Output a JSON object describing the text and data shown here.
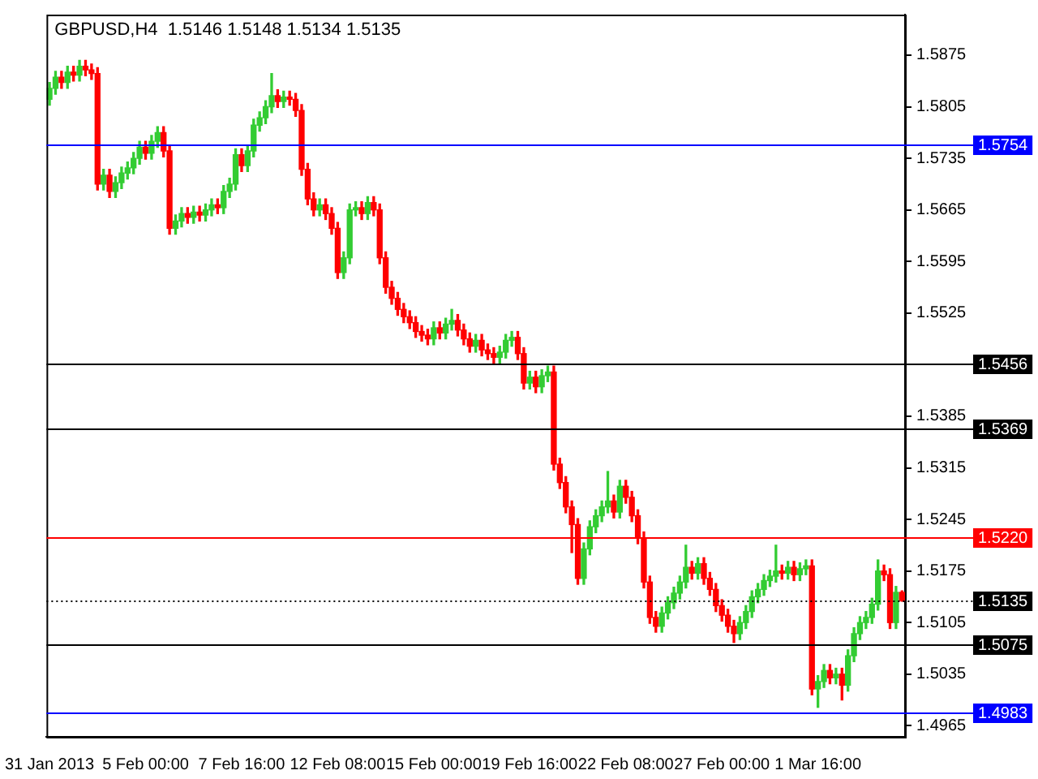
{
  "chart_data": {
    "type": "candlestick",
    "title": "GBPUSD,H4  1.5146 1.5148 1.5134 1.5135",
    "categories": [
      "31 Jan 2013",
      null,
      null,
      null,
      null,
      null,
      null,
      null,
      null,
      null,
      null,
      null,
      null,
      null,
      null,
      null,
      "5 Feb 00:00",
      null,
      null,
      null,
      null,
      null,
      null,
      null,
      null,
      null,
      null,
      null,
      null,
      null,
      null,
      null,
      "7 Feb 16:00",
      null,
      null,
      null,
      null,
      null,
      null,
      null,
      null,
      null,
      null,
      null,
      null,
      null,
      null,
      null,
      "12 Feb 08:00",
      null,
      null,
      null,
      null,
      null,
      null,
      null,
      null,
      null,
      null,
      null,
      null,
      null,
      null,
      null,
      "15 Feb 00:00",
      null,
      null,
      null,
      null,
      null,
      null,
      null,
      null,
      null,
      null,
      null,
      null,
      null,
      null,
      null,
      "19 Feb 16:00",
      null,
      null,
      null,
      null,
      null,
      null,
      null,
      null,
      null,
      null,
      null,
      null,
      null,
      null,
      null,
      "22 Feb 08:00",
      null,
      null,
      null,
      null,
      null,
      null,
      null,
      null,
      null,
      null,
      null,
      null,
      null,
      null,
      null,
      "27 Feb 00:00",
      null,
      null,
      null,
      null,
      null,
      null,
      null,
      null,
      null,
      null,
      null,
      null,
      null,
      null,
      null,
      "1 Mar 16:00",
      null,
      null,
      null,
      null,
      null,
      null,
      null,
      null,
      null,
      null,
      null,
      null,
      null,
      null
    ],
    "ohlc": [
      [
        1.5815,
        1.5838,
        1.5807,
        1.583
      ],
      [
        1.583,
        1.5853,
        1.5822,
        1.5845
      ],
      [
        1.5845,
        1.5853,
        1.583,
        1.5838
      ],
      [
        1.5838,
        1.586,
        1.583,
        1.5852
      ],
      [
        1.5852,
        1.586,
        1.584,
        1.5848
      ],
      [
        1.5848,
        1.5868,
        1.584,
        1.586
      ],
      [
        1.586,
        1.5868,
        1.5847,
        1.5855
      ],
      [
        1.5855,
        1.5863,
        1.5842,
        1.585
      ],
      [
        1.585,
        1.5858,
        1.5692,
        1.57
      ],
      [
        1.57,
        1.572,
        1.5692,
        1.5712
      ],
      [
        1.5712,
        1.572,
        1.5682,
        1.569
      ],
      [
        1.569,
        1.571,
        1.5682,
        1.5702
      ],
      [
        1.5702,
        1.5723,
        1.5694,
        1.5715
      ],
      [
        1.5715,
        1.573,
        1.5707,
        1.5722
      ],
      [
        1.5722,
        1.5743,
        1.5714,
        1.5735
      ],
      [
        1.5735,
        1.5758,
        1.5727,
        1.575
      ],
      [
        1.575,
        1.5758,
        1.5734,
        1.5742
      ],
      [
        1.5742,
        1.5766,
        1.5734,
        1.5758
      ],
      [
        1.5758,
        1.5778,
        1.575,
        1.577
      ],
      [
        1.577,
        1.5778,
        1.5737,
        1.5745
      ],
      [
        1.5745,
        1.5753,
        1.5632,
        1.564
      ],
      [
        1.564,
        1.5658,
        1.5632,
        1.565
      ],
      [
        1.565,
        1.5668,
        1.5642,
        1.566
      ],
      [
        1.566,
        1.5668,
        1.5647,
        1.5655
      ],
      [
        1.5655,
        1.567,
        1.5647,
        1.5662
      ],
      [
        1.5662,
        1.567,
        1.565,
        1.5658
      ],
      [
        1.5658,
        1.5673,
        1.565,
        1.5665
      ],
      [
        1.5665,
        1.568,
        1.5657,
        1.5672
      ],
      [
        1.5672,
        1.568,
        1.566,
        1.5668
      ],
      [
        1.5668,
        1.5698,
        1.566,
        1.569
      ],
      [
        1.569,
        1.5708,
        1.5682,
        1.57
      ],
      [
        1.57,
        1.5748,
        1.5692,
        1.574
      ],
      [
        1.574,
        1.5748,
        1.5717,
        1.5725
      ],
      [
        1.5725,
        1.5753,
        1.5717,
        1.5745
      ],
      [
        1.5745,
        1.5788,
        1.5737,
        1.578
      ],
      [
        1.578,
        1.5798,
        1.5772,
        1.579
      ],
      [
        1.579,
        1.5813,
        1.5782,
        1.5805
      ],
      [
        1.5805,
        1.585,
        1.5797,
        1.582
      ],
      [
        1.582,
        1.5828,
        1.5804,
        1.5812
      ],
      [
        1.5812,
        1.5826,
        1.5804,
        1.5818
      ],
      [
        1.5818,
        1.5826,
        1.5807,
        1.5815
      ],
      [
        1.5815,
        1.5823,
        1.5792,
        1.58
      ],
      [
        1.58,
        1.5808,
        1.5712,
        1.572
      ],
      [
        1.572,
        1.5728,
        1.5672,
        1.568
      ],
      [
        1.568,
        1.5688,
        1.5657,
        1.5665
      ],
      [
        1.5665,
        1.568,
        1.5657,
        1.5672
      ],
      [
        1.5672,
        1.568,
        1.5652,
        1.566
      ],
      [
        1.566,
        1.5668,
        1.5632,
        1.564
      ],
      [
        1.564,
        1.5648,
        1.5572,
        1.558
      ],
      [
        1.558,
        1.5608,
        1.5572,
        1.56
      ],
      [
        1.56,
        1.5673,
        1.5592,
        1.5665
      ],
      [
        1.5665,
        1.5676,
        1.5657,
        1.5668
      ],
      [
        1.5668,
        1.5676,
        1.5652,
        1.566
      ],
      [
        1.566,
        1.5683,
        1.5652,
        1.5675
      ],
      [
        1.5675,
        1.5683,
        1.5657,
        1.5665
      ],
      [
        1.5665,
        1.5673,
        1.5592,
        1.56
      ],
      [
        1.56,
        1.5608,
        1.5552,
        1.556
      ],
      [
        1.556,
        1.5568,
        1.5537,
        1.5545
      ],
      [
        1.5545,
        1.5553,
        1.5522,
        1.553
      ],
      [
        1.553,
        1.5538,
        1.5512,
        1.552
      ],
      [
        1.552,
        1.5528,
        1.5504,
        1.5512
      ],
      [
        1.5512,
        1.552,
        1.5492,
        1.55
      ],
      [
        1.55,
        1.5508,
        1.5487,
        1.5495
      ],
      [
        1.5495,
        1.5503,
        1.5482,
        1.549
      ],
      [
        1.549,
        1.5513,
        1.5482,
        1.5505
      ],
      [
        1.5505,
        1.5513,
        1.549,
        1.5498
      ],
      [
        1.5498,
        1.5518,
        1.549,
        1.551
      ],
      [
        1.551,
        1.553,
        1.5502,
        1.5515
      ],
      [
        1.5515,
        1.5523,
        1.5494,
        1.5502
      ],
      [
        1.5502,
        1.551,
        1.5482,
        1.549
      ],
      [
        1.549,
        1.5498,
        1.5472,
        1.548
      ],
      [
        1.548,
        1.5496,
        1.5472,
        1.5488
      ],
      [
        1.5488,
        1.5496,
        1.5467,
        1.5475
      ],
      [
        1.5475,
        1.5483,
        1.5462,
        1.547
      ],
      [
        1.547,
        1.5478,
        1.5457,
        1.5465
      ],
      [
        1.5465,
        1.548,
        1.5457,
        1.5472
      ],
      [
        1.5472,
        1.5496,
        1.5464,
        1.5488
      ],
      [
        1.5488,
        1.55,
        1.548,
        1.5492
      ],
      [
        1.5492,
        1.55,
        1.5462,
        1.547
      ],
      [
        1.547,
        1.5478,
        1.5422,
        1.543
      ],
      [
        1.543,
        1.5446,
        1.5422,
        1.5438
      ],
      [
        1.5438,
        1.5446,
        1.5417,
        1.5425
      ],
      [
        1.5425,
        1.5448,
        1.5417,
        1.544
      ],
      [
        1.544,
        1.5453,
        1.5432,
        1.5445
      ],
      [
        1.5445,
        1.5453,
        1.5312,
        1.532
      ],
      [
        1.532,
        1.5328,
        1.5287,
        1.5295
      ],
      [
        1.5295,
        1.5303,
        1.5254,
        1.5262
      ],
      [
        1.5262,
        1.527,
        1.52,
        1.5238
      ],
      [
        1.5238,
        1.5246,
        1.5157,
        1.5165
      ],
      [
        1.5165,
        1.5213,
        1.5157,
        1.5205
      ],
      [
        1.5205,
        1.5243,
        1.5197,
        1.5235
      ],
      [
        1.5235,
        1.5258,
        1.5227,
        1.525
      ],
      [
        1.525,
        1.527,
        1.5242,
        1.5262
      ],
      [
        1.5262,
        1.531,
        1.5254,
        1.527
      ],
      [
        1.527,
        1.5278,
        1.5247,
        1.5255
      ],
      [
        1.5255,
        1.5298,
        1.5247,
        1.529
      ],
      [
        1.529,
        1.5298,
        1.5267,
        1.5275
      ],
      [
        1.5275,
        1.5283,
        1.5242,
        1.525
      ],
      [
        1.525,
        1.5258,
        1.5212,
        1.522
      ],
      [
        1.522,
        1.5228,
        1.5152,
        1.516
      ],
      [
        1.516,
        1.5168,
        1.5104,
        1.5112
      ],
      [
        1.5112,
        1.512,
        1.5092,
        1.51
      ],
      [
        1.51,
        1.5126,
        1.5092,
        1.5118
      ],
      [
        1.5118,
        1.514,
        1.511,
        1.5132
      ],
      [
        1.5132,
        1.5153,
        1.5124,
        1.5145
      ],
      [
        1.5145,
        1.5168,
        1.5137,
        1.516
      ],
      [
        1.516,
        1.521,
        1.5152,
        1.518
      ],
      [
        1.518,
        1.5188,
        1.5164,
        1.5172
      ],
      [
        1.5172,
        1.5193,
        1.5164,
        1.5185
      ],
      [
        1.5185,
        1.5193,
        1.5157,
        1.5165
      ],
      [
        1.5165,
        1.5173,
        1.5142,
        1.515
      ],
      [
        1.515,
        1.5158,
        1.512,
        1.5128
      ],
      [
        1.5128,
        1.5136,
        1.5107,
        1.5115
      ],
      [
        1.5115,
        1.5123,
        1.5092,
        1.51
      ],
      [
        1.51,
        1.5108,
        1.5078,
        1.509
      ],
      [
        1.509,
        1.5113,
        1.5082,
        1.5105
      ],
      [
        1.5105,
        1.5128,
        1.5097,
        1.512
      ],
      [
        1.512,
        1.5148,
        1.5112,
        1.514
      ],
      [
        1.514,
        1.5158,
        1.5132,
        1.515
      ],
      [
        1.515,
        1.517,
        1.5142,
        1.5162
      ],
      [
        1.5162,
        1.5176,
        1.5154,
        1.5168
      ],
      [
        1.5168,
        1.521,
        1.516,
        1.5175
      ],
      [
        1.5175,
        1.5183,
        1.5164,
        1.5172
      ],
      [
        1.5172,
        1.5188,
        1.5164,
        1.518
      ],
      [
        1.518,
        1.5188,
        1.5162,
        1.517
      ],
      [
        1.517,
        1.5186,
        1.5162,
        1.5178
      ],
      [
        1.5178,
        1.519,
        1.517,
        1.5182
      ],
      [
        1.5182,
        1.519,
        1.5007,
        1.5015
      ],
      [
        1.5015,
        1.5033,
        1.499,
        1.5025
      ],
      [
        1.5025,
        1.5048,
        1.5017,
        1.504
      ],
      [
        1.504,
        1.5048,
        1.5022,
        1.503
      ],
      [
        1.503,
        1.5043,
        1.5022,
        1.5035
      ],
      [
        1.5035,
        1.5043,
        1.5,
        1.502
      ],
      [
        1.502,
        1.5068,
        1.5012,
        1.506
      ],
      [
        1.506,
        1.5098,
        1.5052,
        1.509
      ],
      [
        1.509,
        1.5113,
        1.5082,
        1.5105
      ],
      [
        1.5105,
        1.512,
        1.5097,
        1.5112
      ],
      [
        1.5112,
        1.5138,
        1.5104,
        1.513
      ],
      [
        1.513,
        1.519,
        1.5122,
        1.5175
      ],
      [
        1.5175,
        1.5183,
        1.5162,
        1.517
      ],
      [
        1.517,
        1.5178,
        1.5097,
        1.5105
      ],
      [
        1.5105,
        1.5154,
        1.5097,
        1.5146
      ],
      [
        1.5146,
        1.5148,
        1.5134,
        1.5135
      ]
    ],
    "colors": [
      "#33cc33",
      "#33cc33",
      "#ff0000",
      "#33cc33",
      "#ff0000",
      "#33cc33",
      "#ff0000",
      "#ff0000",
      "#ff0000",
      "#33cc33",
      "#ff0000",
      "#33cc33",
      "#33cc33",
      "#33cc33",
      "#33cc33",
      "#33cc33",
      "#ff0000",
      "#33cc33",
      "#33cc33",
      "#ff0000",
      "#ff0000",
      "#33cc33",
      "#33cc33",
      "#ff0000",
      "#33cc33",
      "#ff0000",
      "#33cc33",
      "#33cc33",
      "#ff0000",
      "#33cc33",
      "#33cc33",
      "#33cc33",
      "#ff0000",
      "#33cc33",
      "#33cc33",
      "#33cc33",
      "#33cc33",
      "#33cc33",
      "#ff0000",
      "#33cc33",
      "#ff0000",
      "#ff0000",
      "#ff0000",
      "#ff0000",
      "#ff0000",
      "#33cc33",
      "#ff0000",
      "#ff0000",
      "#ff0000",
      "#33cc33",
      "#33cc33",
      "#33cc33",
      "#ff0000",
      "#33cc33",
      "#ff0000",
      "#ff0000",
      "#ff0000",
      "#ff0000",
      "#ff0000",
      "#ff0000",
      "#ff0000",
      "#ff0000",
      "#ff0000",
      "#ff0000",
      "#33cc33",
      "#ff0000",
      "#33cc33",
      "#33cc33",
      "#ff0000",
      "#ff0000",
      "#ff0000",
      "#33cc33",
      "#ff0000",
      "#ff0000",
      "#ff0000",
      "#33cc33",
      "#33cc33",
      "#33cc33",
      "#ff0000",
      "#ff0000",
      "#33cc33",
      "#ff0000",
      "#33cc33",
      "#33cc33",
      "#ff0000",
      "#ff0000",
      "#ff0000",
      "#ff0000",
      "#ff0000",
      "#33cc33",
      "#33cc33",
      "#33cc33",
      "#33cc33",
      "#33cc33",
      "#ff0000",
      "#33cc33",
      "#ff0000",
      "#ff0000",
      "#ff0000",
      "#ff0000",
      "#ff0000",
      "#ff0000",
      "#33cc33",
      "#33cc33",
      "#33cc33",
      "#33cc33",
      "#33cc33",
      "#ff0000",
      "#33cc33",
      "#ff0000",
      "#ff0000",
      "#ff0000",
      "#ff0000",
      "#ff0000",
      "#ff0000",
      "#33cc33",
      "#33cc33",
      "#33cc33",
      "#33cc33",
      "#33cc33",
      "#33cc33",
      "#33cc33",
      "#ff0000",
      "#33cc33",
      "#ff0000",
      "#33cc33",
      "#33cc33",
      "#ff0000",
      "#33cc33",
      "#33cc33",
      "#ff0000",
      "#33cc33",
      "#ff0000",
      "#33cc33",
      "#33cc33",
      "#33cc33",
      "#33cc33",
      "#33cc33",
      "#33cc33",
      "#ff0000",
      "#ff0000",
      "#33cc33",
      "#ff0000"
    ],
    "ylim": [
      1.495,
      1.593
    ],
    "yticks": [
      1.5875,
      1.5805,
      1.5735,
      1.5665,
      1.5595,
      1.5525,
      1.5385,
      1.5315,
      1.5245,
      1.5175,
      1.5105,
      1.5035,
      1.4965
    ],
    "ref_lines": [
      {
        "axis": "y",
        "value": 1.5754,
        "label": "1.5754",
        "color": "#0000ff"
      },
      {
        "axis": "y",
        "value": 1.5456,
        "label": "1.5456",
        "color": "#000000"
      },
      {
        "axis": "y",
        "value": 1.5369,
        "label": "1.5369",
        "color": "#000000"
      },
      {
        "axis": "y",
        "value": 1.522,
        "label": "1.5220",
        "color": "#ff0000"
      },
      {
        "axis": "y",
        "value": 1.5135,
        "label": "1.5135",
        "color": "#000000",
        "line_style": "dotted"
      },
      {
        "axis": "y",
        "value": 1.5075,
        "label": "1.5075",
        "color": "#000000"
      },
      {
        "axis": "y",
        "value": 1.4983,
        "label": "1.4983",
        "color": "#0000ff"
      }
    ]
  }
}
